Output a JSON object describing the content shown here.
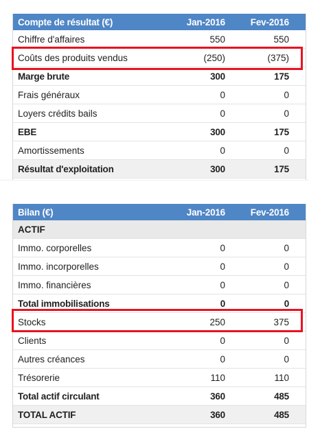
{
  "pnl": {
    "header": {
      "label": "Compte de résultat (€)",
      "col1": "Jan-2016",
      "col2": "Fev-2016"
    },
    "rows": [
      {
        "label": "Chiffre d'affaires",
        "v1": "550",
        "v2": "550"
      },
      {
        "label": "Coûts des produits vendus",
        "v1": "(250)",
        "v2": "(375)"
      },
      {
        "label": "Marge brute",
        "v1": "300",
        "v2": "175"
      },
      {
        "label": "Frais généraux",
        "v1": "0",
        "v2": "0"
      },
      {
        "label": "Loyers crédits bails",
        "v1": "0",
        "v2": "0"
      },
      {
        "label": "EBE",
        "v1": "300",
        "v2": "175"
      },
      {
        "label": "Amortissements",
        "v1": "0",
        "v2": "0"
      },
      {
        "label": "Résultat d'exploitation",
        "v1": "300",
        "v2": "175"
      }
    ]
  },
  "bilan": {
    "header": {
      "label": "Bilan (€)",
      "col1": "Jan-2016",
      "col2": "Fev-2016"
    },
    "section": "ACTIF",
    "rows": [
      {
        "label": "Immo. corporelles",
        "v1": "0",
        "v2": "0"
      },
      {
        "label": "Immo. incorporelles",
        "v1": "0",
        "v2": "0"
      },
      {
        "label": "Immo. financières",
        "v1": "0",
        "v2": "0"
      },
      {
        "label": "Total immobilisations",
        "v1": "0",
        "v2": "0"
      },
      {
        "label": "Stocks",
        "v1": "250",
        "v2": "375"
      },
      {
        "label": "Clients",
        "v1": "0",
        "v2": "0"
      },
      {
        "label": "Autres créances",
        "v1": "0",
        "v2": "0"
      },
      {
        "label": "Trésorerie",
        "v1": "110",
        "v2": "110"
      },
      {
        "label": "Total actif circulant",
        "v1": "360",
        "v2": "485"
      },
      {
        "label": "TOTAL ACTIF",
        "v1": "360",
        "v2": "485"
      }
    ]
  },
  "colors": {
    "header": "#4f86c6",
    "highlight": "#e8121f",
    "section": "#e9e9e9"
  }
}
